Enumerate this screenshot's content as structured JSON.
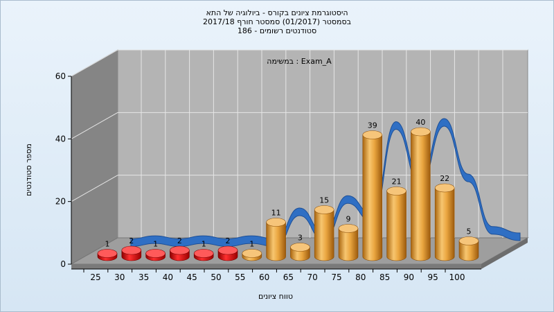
{
  "title_lines": [
    "היסטוגרמת ציונים בקורס - ביולוגיה של התא",
    "בסמסטר  (01/2017)  סמסטר חורף 2017/18",
    "186 - סטודנטים רשומים"
  ],
  "chart_data": {
    "type": "bar",
    "title": "היסטוגרמת ציונים בקורס - ביולוגיה של התא",
    "annotation": "במשימה : Exam_A",
    "xlabel": "טווח ציונים",
    "ylabel": "מספר סטודנטים",
    "ylim": [
      0,
      60
    ],
    "yticks": [
      0,
      20,
      40,
      60
    ],
    "grid": true,
    "categories": [
      "25",
      "30",
      "35",
      "40",
      "45",
      "50",
      "55",
      "60",
      "65",
      "70",
      "75",
      "80",
      "85",
      "90",
      "95",
      "100"
    ],
    "bars": [
      {
        "x": "25",
        "value": 1,
        "color": "#e01010"
      },
      {
        "x": "30",
        "value": 2,
        "color": "#e01010"
      },
      {
        "x": "35",
        "value": 1,
        "color": "#e01010"
      },
      {
        "x": "40",
        "value": 2,
        "color": "#e01010"
      },
      {
        "x": "45",
        "value": 1,
        "color": "#e01010"
      },
      {
        "x": "50",
        "value": 2,
        "color": "#e01010"
      },
      {
        "x": "55",
        "value": 1,
        "color": "#e9a53c"
      },
      {
        "x": "60",
        "value": 11,
        "color": "#e9a53c"
      },
      {
        "x": "65",
        "value": 3,
        "color": "#e9a53c"
      },
      {
        "x": "70",
        "value": 15,
        "color": "#e9a53c"
      },
      {
        "x": "75",
        "value": 9,
        "color": "#e9a53c"
      },
      {
        "x": "80",
        "value": 39,
        "color": "#e9a53c"
      },
      {
        "x": "85",
        "value": 21,
        "color": "#e9a53c"
      },
      {
        "x": "90",
        "value": 40,
        "color": "#e9a53c"
      },
      {
        "x": "95",
        "value": 22,
        "color": "#e9a53c"
      },
      {
        "x": "100",
        "value": 5,
        "color": "#e9a53c"
      }
    ],
    "ribbon_color": "#2f6fc4"
  }
}
